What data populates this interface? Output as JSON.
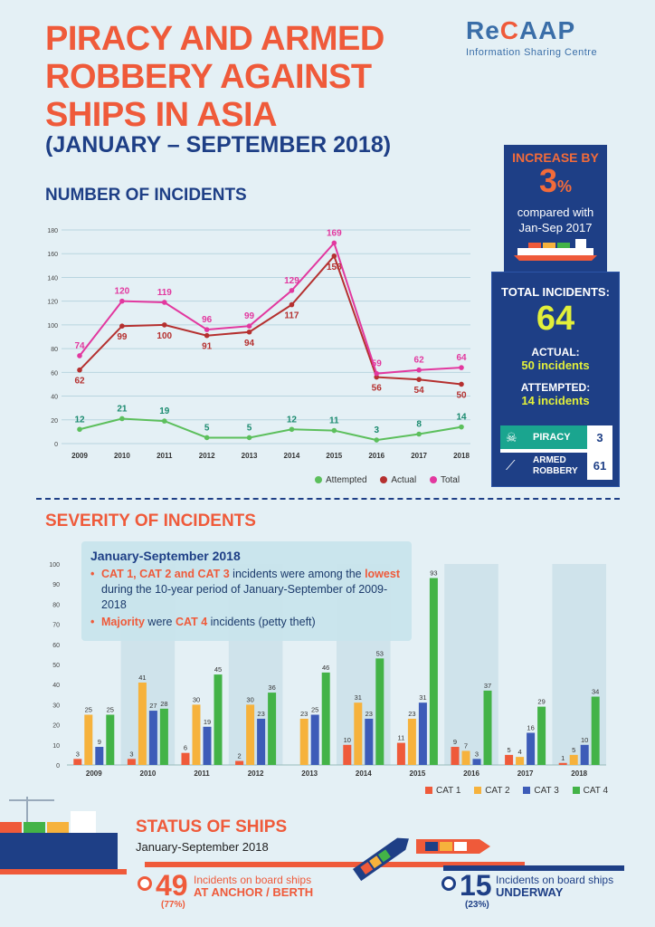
{
  "header": {
    "title_lines": [
      "PIRACY AND ARMED",
      "ROBBERY AGAINST",
      "SHIPS IN ASIA"
    ],
    "subtitle": "(JANUARY – SEPTEMBER 2018)",
    "logo_main_pre": "Re",
    "logo_main_c": "C",
    "logo_main_post": "AAP",
    "logo_sub": "Information Sharing Centre"
  },
  "panel": {
    "increase_label": "INCREASE BY",
    "increase_value": "3",
    "increase_unit": "%",
    "compare_line1": "compared with",
    "compare_line2": "Jan-Sep 2017",
    "total_label": "TOTAL INCIDENTS:",
    "total_value": "64",
    "actual_label": "ACTUAL:",
    "actual_value": "50 incidents",
    "attempted_label": "ATTEMPTED:",
    "attempted_value": "14 incidents",
    "piracy_label": "PIRACY",
    "piracy_value": "3",
    "armed_label_1": "ARMED",
    "armed_label_2": "ROBBERY",
    "armed_value": "61",
    "colors": {
      "navy": "#1e3f86",
      "yellow": "#e2ef3a",
      "teal": "#1aa58f"
    }
  },
  "sections": {
    "incidents_title": "NUMBER OF INCIDENTS",
    "severity_title": "SEVERITY OF INCIDENTS"
  },
  "callout": {
    "heading": "January-September 2018",
    "b1_hl1": "CAT 1, CAT 2 and CAT 3",
    "b1_t1": " incidents were among the ",
    "b1_hl2": "lowest",
    "b1_t2": " during the 10-year period of January-September of 2009-2018",
    "b2_hl": "Majority",
    "b2_t1": " were ",
    "b2_hl2": "CAT 4",
    "b2_t2": " incidents (petty theft)"
  },
  "status": {
    "title": "STATUS OF SHIPS",
    "subtitle": "January-September 2018",
    "anchor_value": "49",
    "anchor_text1": "Incidents on board ships",
    "anchor_text2": "AT ANCHOR / BERTH",
    "anchor_pct": "(77%)",
    "underway_value": "15",
    "underway_text1": "Incidents on board ships",
    "underway_text2": "UNDERWAY",
    "underway_pct": "(23%)"
  },
  "chart_data": [
    {
      "type": "line",
      "x": [
        "2009",
        "2010",
        "2011",
        "2012",
        "2013",
        "2014",
        "2015",
        "2016",
        "2017",
        "2018"
      ],
      "ylim": [
        0,
        180
      ],
      "yticks": [
        0,
        20,
        40,
        60,
        80,
        100,
        120,
        140,
        160,
        180
      ],
      "series": [
        {
          "name": "Attempted",
          "color": "#5cbf5c",
          "values": [
            12,
            21,
            19,
            5,
            5,
            12,
            11,
            3,
            8,
            14
          ]
        },
        {
          "name": "Actual",
          "color": "#b5302f",
          "values": [
            62,
            99,
            100,
            91,
            94,
            117,
            158,
            56,
            54,
            50
          ]
        },
        {
          "name": "Total",
          "color": "#e2389f",
          "values": [
            74,
            120,
            119,
            96,
            99,
            129,
            169,
            59,
            62,
            64
          ]
        }
      ],
      "grid": true,
      "legend": "bottom-right"
    },
    {
      "type": "bar",
      "categories": [
        "2009",
        "2010",
        "2011",
        "2012",
        "2013",
        "2014",
        "2015",
        "2016",
        "2017",
        "2018"
      ],
      "ylim": [
        0,
        100
      ],
      "yticks": [
        0,
        10,
        20,
        30,
        40,
        50,
        60,
        70,
        80,
        90,
        100
      ],
      "series": [
        {
          "name": "CAT 1",
          "color": "#ef5a3a",
          "values": [
            3,
            3,
            6,
            2,
            0,
            10,
            11,
            9,
            5,
            1
          ]
        },
        {
          "name": "CAT 2",
          "color": "#f6b23c",
          "values": [
            25,
            41,
            30,
            30,
            23,
            31,
            23,
            7,
            4,
            5
          ]
        },
        {
          "name": "CAT 3",
          "color": "#3d5cb8",
          "values": [
            9,
            27,
            19,
            23,
            25,
            23,
            31,
            3,
            16,
            10
          ]
        },
        {
          "name": "CAT 4",
          "color": "#43b347",
          "values": [
            25,
            28,
            45,
            36,
            46,
            53,
            93,
            37,
            29,
            34
          ]
        }
      ],
      "labels": [
        [
          "3",
          "25",
          "9",
          "25"
        ],
        [
          "3",
          "41",
          "27",
          "28"
        ],
        [
          "6",
          "30",
          "19",
          "45"
        ],
        [
          "2",
          "30",
          "23",
          "36"
        ],
        [
          "",
          "23",
          "25",
          "46"
        ],
        [
          "10",
          "31",
          "23",
          "53"
        ],
        [
          "11",
          "23",
          "31",
          "93"
        ],
        [
          "9",
          "7",
          "3",
          "37"
        ],
        [
          "5",
          "4",
          "16",
          "29"
        ],
        [
          "1",
          "5",
          "10",
          "34"
        ]
      ],
      "legend": "bottom-right"
    }
  ]
}
